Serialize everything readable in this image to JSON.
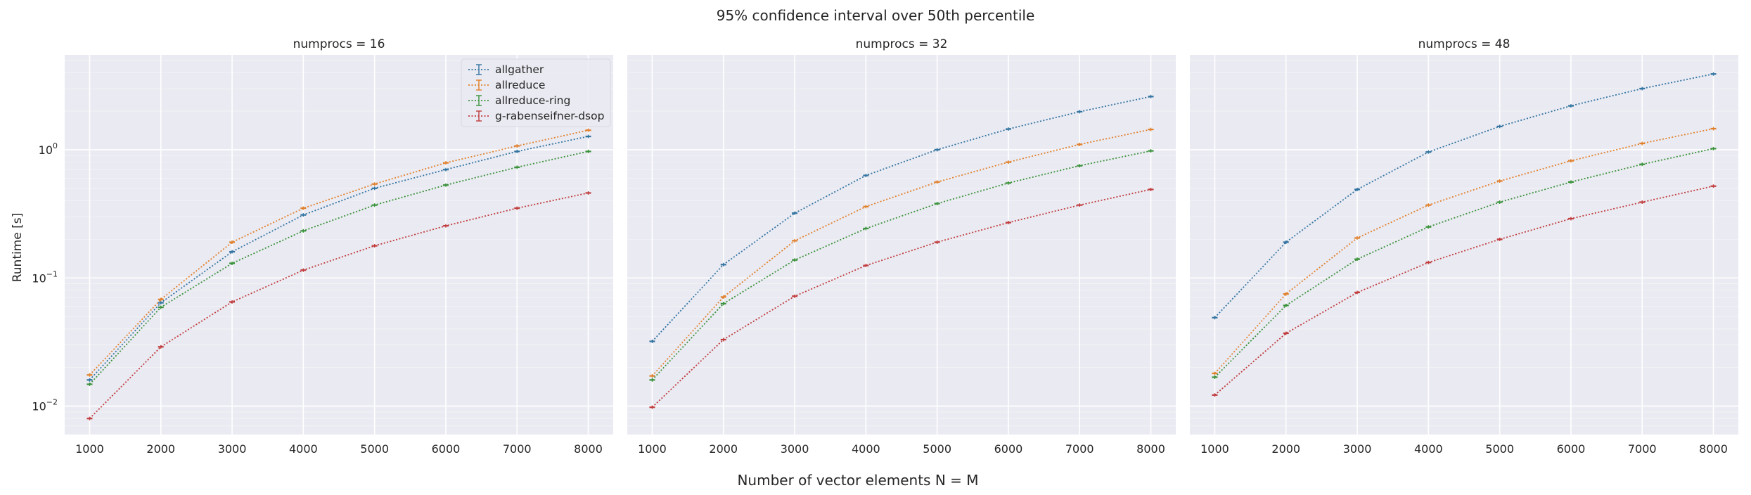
{
  "chart_data": {
    "type": "line",
    "title": "95% confidence interval over 50th percentile",
    "xlabel": "Number of vector elements N = M",
    "ylabel": "Runtime [s]",
    "yscale": "log",
    "ylim": [
      0.006,
      5.5
    ],
    "xlim": [
      650,
      8350
    ],
    "x": [
      1000,
      2000,
      3000,
      4000,
      5000,
      6000,
      7000,
      8000
    ],
    "x_tick_labels": [
      "1000",
      "2000",
      "3000",
      "4000",
      "5000",
      "6000",
      "7000",
      "8000"
    ],
    "y_ticks": [
      {
        "value": 0.01,
        "base": "10",
        "exp": "−2"
      },
      {
        "value": 0.1,
        "base": "10",
        "exp": "−1"
      },
      {
        "value": 1,
        "base": "10",
        "exp": "0"
      }
    ],
    "grid": true,
    "legend_position": "top-right of first panel",
    "legend": [
      "allgather",
      "allreduce",
      "allreduce-ring",
      "g-rabenseifner-dsop"
    ],
    "colors": {
      "allgather": "#3274a1",
      "allreduce": "#e1812c",
      "allreduce-ring": "#3a923a",
      "g-rabenseifner-dsop": "#c03d3e"
    },
    "panels": [
      {
        "title": "numprocs = 16",
        "series": [
          {
            "name": "allgather",
            "values": [
              0.016,
              0.064,
              0.16,
              0.31,
              0.5,
              0.7,
              0.97,
              1.27
            ]
          },
          {
            "name": "allreduce",
            "values": [
              0.0175,
              0.068,
              0.19,
              0.35,
              0.54,
              0.79,
              1.07,
              1.42
            ]
          },
          {
            "name": "allreduce-ring",
            "values": [
              0.0148,
              0.059,
              0.13,
              0.233,
              0.37,
              0.53,
              0.73,
              0.97
            ]
          },
          {
            "name": "g-rabenseifner-dsop",
            "values": [
              0.008,
              0.029,
              0.065,
              0.115,
              0.178,
              0.255,
              0.35,
              0.46
            ]
          }
        ]
      },
      {
        "title": "numprocs = 32",
        "series": [
          {
            "name": "allgather",
            "values": [
              0.032,
              0.127,
              0.32,
              0.63,
              1.0,
              1.45,
              1.98,
              2.6
            ]
          },
          {
            "name": "allreduce",
            "values": [
              0.0172,
              0.071,
              0.195,
              0.36,
              0.56,
              0.8,
              1.1,
              1.44
            ]
          },
          {
            "name": "allreduce-ring",
            "values": [
              0.016,
              0.063,
              0.138,
              0.243,
              0.38,
              0.55,
              0.75,
              0.98
            ]
          },
          {
            "name": "g-rabenseifner-dsop",
            "values": [
              0.0098,
              0.033,
              0.072,
              0.125,
              0.19,
              0.27,
              0.37,
              0.49
            ]
          }
        ]
      },
      {
        "title": "numprocs = 48",
        "series": [
          {
            "name": "allgather",
            "values": [
              0.049,
              0.19,
              0.49,
              0.96,
              1.52,
              2.2,
              3.0,
              3.9
            ]
          },
          {
            "name": "allreduce",
            "values": [
              0.018,
              0.075,
              0.205,
              0.37,
              0.57,
              0.82,
              1.12,
              1.46
            ]
          },
          {
            "name": "allreduce-ring",
            "values": [
              0.0168,
              0.061,
              0.14,
              0.25,
              0.39,
              0.56,
              0.77,
              1.02
            ]
          },
          {
            "name": "g-rabenseifner-dsop",
            "values": [
              0.0122,
              0.037,
              0.077,
              0.132,
              0.2,
              0.29,
              0.39,
              0.52
            ]
          }
        ]
      }
    ]
  }
}
